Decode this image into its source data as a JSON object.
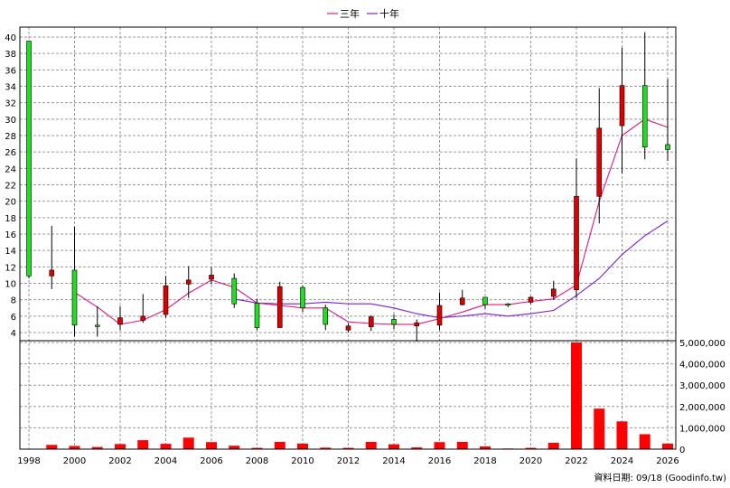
{
  "chart_data": {
    "type": "candlestick+volume",
    "legend": [
      {
        "name": "三年",
        "color": "#e0197f"
      },
      {
        "name": "十年",
        "color": "#7f1fd2"
      }
    ],
    "x_ticks": [
      "1998",
      "2000",
      "2002",
      "2004",
      "2006",
      "2008",
      "2010",
      "2012",
      "2014",
      "2016",
      "2018",
      "2020",
      "2022",
      "2024",
      "2026"
    ],
    "price_axis": {
      "ylim": [
        4,
        41
      ],
      "ticks": [
        4,
        6,
        8,
        10,
        12,
        14,
        16,
        18,
        20,
        22,
        24,
        26,
        28,
        30,
        32,
        34,
        36,
        38,
        40
      ]
    },
    "volume_axis": {
      "ylim": [
        0,
        5000000
      ],
      "ticks": [
        "0",
        "1,000,000",
        "2,000,000",
        "3,000,000",
        "4,000,000",
        "5,000,000"
      ],
      "tick_values": [
        0,
        1000000,
        2000000,
        3000000,
        4000000,
        5000000
      ]
    },
    "candles": [
      {
        "year": 1998,
        "open": 10.9,
        "high": 39.5,
        "low": 10.6,
        "close": 39.5
      },
      {
        "year": 1999,
        "open": 11.6,
        "high": 17.0,
        "low": 9.3,
        "close": 10.9
      },
      {
        "year": 2000,
        "open": 4.9,
        "high": 16.9,
        "low": 3.5,
        "close": 11.6
      },
      {
        "year": 2001,
        "open": 4.9,
        "high": 7.2,
        "low": 3.5,
        "close": 4.9
      },
      {
        "year": 2002,
        "open": 5.8,
        "high": 7.2,
        "low": 4.3,
        "close": 5.0
      },
      {
        "year": 2003,
        "open": 6.0,
        "high": 8.7,
        "low": 5.2,
        "close": 5.5
      },
      {
        "year": 2004,
        "open": 9.7,
        "high": 10.9,
        "low": 5.8,
        "close": 6.2
      },
      {
        "year": 2005,
        "open": 10.4,
        "high": 12.1,
        "low": 8.2,
        "close": 9.9
      },
      {
        "year": 2006,
        "open": 11.0,
        "high": 12.0,
        "low": 9.9,
        "close": 10.5
      },
      {
        "year": 2007,
        "open": 7.5,
        "high": 11.2,
        "low": 7.0,
        "close": 10.6
      },
      {
        "year": 2008,
        "open": 4.6,
        "high": 8.1,
        "low": 4.3,
        "close": 7.6
      },
      {
        "year": 2009,
        "open": 9.6,
        "high": 10.2,
        "low": 4.6,
        "close": 4.6
      },
      {
        "year": 2010,
        "open": 7.0,
        "high": 9.7,
        "low": 6.5,
        "close": 9.5
      },
      {
        "year": 2011,
        "open": 5.0,
        "high": 7.4,
        "low": 4.3,
        "close": 7.0
      },
      {
        "year": 2012,
        "open": 4.8,
        "high": 5.1,
        "low": 4.0,
        "close": 4.3
      },
      {
        "year": 2013,
        "open": 5.9,
        "high": 6.1,
        "low": 4.2,
        "close": 4.7
      },
      {
        "year": 2014,
        "open": 5.0,
        "high": 6.2,
        "low": 4.4,
        "close": 5.6
      },
      {
        "year": 2015,
        "open": 5.2,
        "high": 5.6,
        "low": 2.9,
        "close": 4.8
      },
      {
        "year": 2016,
        "open": 7.3,
        "high": 8.9,
        "low": 4.3,
        "close": 4.9
      },
      {
        "year": 2017,
        "open": 8.2,
        "high": 9.2,
        "low": 7.3,
        "close": 7.4
      },
      {
        "year": 2018,
        "open": 7.4,
        "high": 8.3,
        "low": 6.9,
        "close": 8.3
      },
      {
        "year": 2019,
        "open": 7.4,
        "high": 7.6,
        "low": 7.1,
        "close": 7.5
      },
      {
        "year": 2020,
        "open": 8.3,
        "high": 8.4,
        "low": 7.5,
        "close": 7.7
      },
      {
        "year": 2021,
        "open": 9.3,
        "high": 10.3,
        "low": 8.0,
        "close": 8.4
      },
      {
        "year": 2022,
        "open": 20.6,
        "high": 25.2,
        "low": 8.2,
        "close": 9.2
      },
      {
        "year": 2023,
        "open": 28.9,
        "high": 33.8,
        "low": 17.3,
        "close": 20.6
      },
      {
        "year": 2024,
        "open": 34.1,
        "high": 38.7,
        "low": 23.4,
        "close": 29.2
      },
      {
        "year": 2025,
        "open": 26.6,
        "high": 40.6,
        "low": 25.1,
        "close": 34.1
      },
      {
        "year": 2026,
        "open": 26.3,
        "high": 34.9,
        "low": 24.9,
        "close": 26.9
      }
    ],
    "ma_3y": {
      "name": "三年",
      "x": [
        2000,
        2001,
        2002,
        2003,
        2004,
        2005,
        2006,
        2007,
        2008,
        2009,
        2010,
        2011,
        2012,
        2013,
        2014,
        2015,
        2016,
        2017,
        2018,
        2019,
        2020,
        2021,
        2022,
        2023,
        2024,
        2025,
        2026
      ],
      "y": [
        8.9,
        7.1,
        5.0,
        5.5,
        6.8,
        8.8,
        10.4,
        9.5,
        7.6,
        7.3,
        7.0,
        7.0,
        5.3,
        5.1,
        5.0,
        5.0,
        5.7,
        6.5,
        7.4,
        7.4,
        7.8,
        8.1,
        9.8,
        20.0,
        28.0,
        30.0,
        29.0
      ]
    },
    "ma_10y": {
      "name": "十年",
      "x": [
        2007,
        2008,
        2009,
        2010,
        2011,
        2012,
        2013,
        2014,
        2015,
        2016,
        2017,
        2018,
        2019,
        2020,
        2021,
        2022,
        2023,
        2024,
        2025,
        2026
      ],
      "y": [
        8.1,
        7.6,
        7.5,
        7.5,
        7.7,
        7.5,
        7.5,
        7.0,
        6.3,
        5.8,
        6.0,
        6.3,
        6.0,
        6.3,
        6.7,
        8.5,
        10.6,
        13.5,
        15.8,
        17.6
      ]
    },
    "volumes": [
      {
        "year": 1998,
        "value": 20000
      },
      {
        "year": 1999,
        "value": 200000
      },
      {
        "year": 2000,
        "value": 150000
      },
      {
        "year": 2001,
        "value": 100000
      },
      {
        "year": 2002,
        "value": 240000
      },
      {
        "year": 2003,
        "value": 420000
      },
      {
        "year": 2004,
        "value": 250000
      },
      {
        "year": 2005,
        "value": 540000
      },
      {
        "year": 2006,
        "value": 330000
      },
      {
        "year": 2007,
        "value": 160000
      },
      {
        "year": 2008,
        "value": 60000
      },
      {
        "year": 2009,
        "value": 340000
      },
      {
        "year": 2010,
        "value": 260000
      },
      {
        "year": 2011,
        "value": 70000
      },
      {
        "year": 2012,
        "value": 60000
      },
      {
        "year": 2013,
        "value": 340000
      },
      {
        "year": 2014,
        "value": 230000
      },
      {
        "year": 2015,
        "value": 80000
      },
      {
        "year": 2016,
        "value": 330000
      },
      {
        "year": 2017,
        "value": 340000
      },
      {
        "year": 2018,
        "value": 130000
      },
      {
        "year": 2019,
        "value": 30000
      },
      {
        "year": 2020,
        "value": 60000
      },
      {
        "year": 2021,
        "value": 300000
      },
      {
        "year": 2022,
        "value": 5000000
      },
      {
        "year": 2023,
        "value": 1900000
      },
      {
        "year": 2024,
        "value": 1300000
      },
      {
        "year": 2025,
        "value": 700000
      },
      {
        "year": 2026,
        "value": 260000
      }
    ],
    "colors": {
      "up": "#22dd22",
      "down": "#dd0000",
      "volume": "#ff0000",
      "grid": "#9a9a9a",
      "axis": "#000000",
      "wick": "#000000"
    },
    "grid": true,
    "legend_position": "top-center",
    "source_note": "資料日期: 09/18  (Goodinfo.tw)"
  }
}
